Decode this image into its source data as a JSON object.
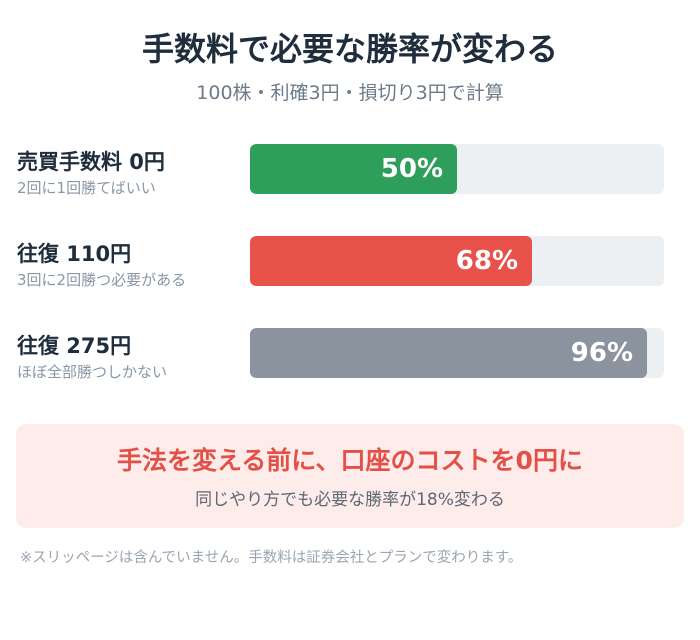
{
  "header": {
    "title": "手数料で必要な勝率が変わる",
    "subtitle": "100株・利確3円・損切り3円で計算"
  },
  "chart_data": {
    "type": "bar",
    "orientation": "horizontal",
    "categories": [
      "売買手数料 0円",
      "往復 110円",
      "往復 275円"
    ],
    "notes": [
      "2回に1回勝てばいい",
      "3回に2回勝つ必要がある",
      "ほぼ全部勝つしかない"
    ],
    "values": [
      50,
      68,
      96
    ],
    "value_labels": [
      "50%",
      "68%",
      "96%"
    ],
    "colors": [
      "#2e9e5b",
      "#e8524b",
      "#8a939e"
    ],
    "xlim": [
      0,
      100
    ],
    "track_color": "#edf0f3"
  },
  "callout": {
    "title": "手法を変える前に、口座のコストを0円に",
    "subtitle": "同じやり方でも必要な勝率が18%変わる"
  },
  "footnote": "※スリッページは含んでいません。手数料は証券会社とプランで変わります。"
}
